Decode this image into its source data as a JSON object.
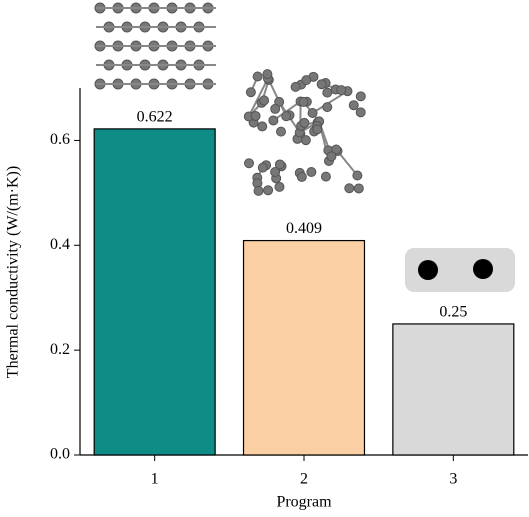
{
  "chart_data": {
    "type": "bar",
    "categories": [
      "1",
      "2",
      "3"
    ],
    "values": [
      0.622,
      0.409,
      0.25
    ],
    "colors": [
      "#0e8c86",
      "#f9cfa3",
      "#d9d9d9"
    ],
    "xlabel": "Program",
    "ylabel": "Thermal conductivity (W/(m·K))",
    "ylim": [
      0,
      0.7
    ],
    "yticks": [
      {
        "value": 0,
        "label": "0.0"
      },
      0.2,
      0.4,
      0.6
    ]
  }
}
